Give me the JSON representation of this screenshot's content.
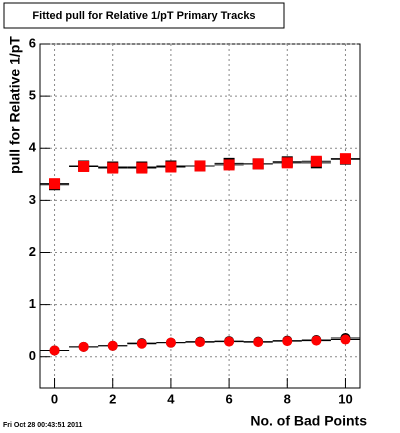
{
  "chart_data": {
    "type": "scatter",
    "title": "Fitted pull for Relative 1/pT Primary Tracks",
    "x_label": "No. of Bad Points",
    "y_label": "pull for Relative 1/pT",
    "footer": "Fri Oct 28 00:43:51 2011",
    "x": [
      0,
      1,
      2,
      3,
      4,
      5,
      6,
      7,
      8,
      9,
      10
    ],
    "xerr": 0.5,
    "series": [
      {
        "color": "#000000",
        "marker": "square",
        "values": [
          3.3,
          3.66,
          3.64,
          3.64,
          3.66,
          3.66,
          3.71,
          3.7,
          3.74,
          3.72,
          3.79
        ]
      },
      {
        "color": "#ff0000",
        "marker": "square",
        "values": [
          3.32,
          3.65,
          3.62,
          3.62,
          3.64,
          3.66,
          3.68,
          3.7,
          3.72,
          3.75,
          3.8
        ]
      },
      {
        "color": "#000000",
        "marker": "circle",
        "values": [
          0.12,
          0.19,
          0.21,
          0.26,
          0.27,
          0.29,
          0.3,
          0.29,
          0.31,
          0.32,
          0.36
        ]
      },
      {
        "color": "#ff0000",
        "marker": "circle",
        "values": [
          0.12,
          0.19,
          0.21,
          0.25,
          0.27,
          0.28,
          0.29,
          0.28,
          0.3,
          0.31,
          0.33
        ]
      }
    ],
    "xlim": [
      -0.5,
      10.5
    ],
    "ylim": [
      -0.6,
      6
    ],
    "xticks": [
      0,
      2,
      4,
      6,
      8,
      10
    ],
    "yticks": [
      0,
      1,
      2,
      3,
      4,
      5,
      6
    ],
    "grid": true
  }
}
